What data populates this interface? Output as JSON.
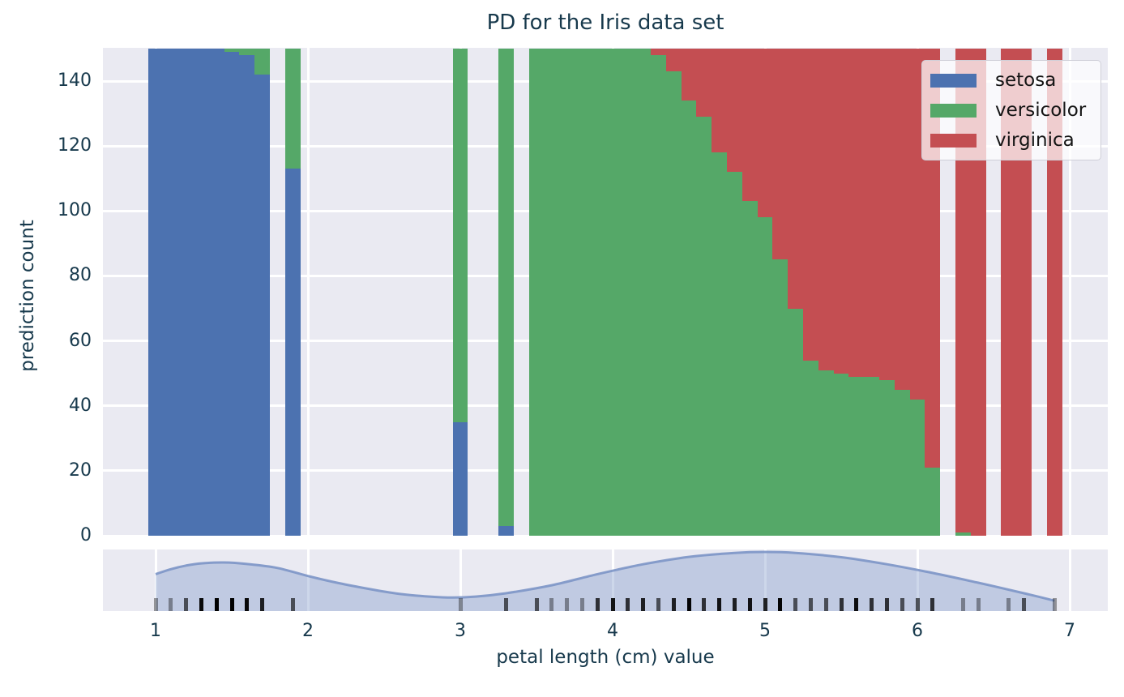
{
  "title": "PD for the Iris data set",
  "y_axis": {
    "label": "prediction count"
  },
  "x_axis": {
    "label": "petal length (cm) value"
  },
  "legend": {
    "items": [
      {
        "label": "setosa",
        "color": "#4c72b0"
      },
      {
        "label": "versicolor",
        "color": "#55a868"
      },
      {
        "label": "virginica",
        "color": "#c44e52"
      }
    ]
  },
  "colors": {
    "plot_background": "#eaeaf2",
    "gridline": "#ffffff",
    "axis_text": "#17394c",
    "legend_text": "#141414",
    "setosa": "#4c72b0",
    "versicolor": "#55a868",
    "virginica": "#c44e52",
    "kde_line": "rgba(124,149,199,0.9)",
    "kde_fill": "rgba(124,149,199,0.38)",
    "rug": "0,0,0"
  },
  "chart_data": {
    "type": "bar",
    "stacked": true,
    "title": "PD for the Iris data set",
    "xlabel": "petal length (cm) value",
    "ylabel": "prediction count",
    "xlim": [
      0.65,
      7.25
    ],
    "ylim": [
      0,
      150
    ],
    "x_ticks": [
      1,
      2,
      3,
      4,
      5,
      6,
      7
    ],
    "y_ticks": [
      0,
      20,
      40,
      60,
      80,
      100,
      120,
      140
    ],
    "grid": true,
    "legend_position": "upper right",
    "bar_width": 0.1,
    "x": [
      1.0,
      1.1,
      1.2,
      1.3,
      1.4,
      1.5,
      1.6,
      1.7,
      1.9,
      3.0,
      3.3,
      3.5,
      3.6,
      3.7,
      3.8,
      3.9,
      4.0,
      4.1,
      4.2,
      4.3,
      4.4,
      4.5,
      4.6,
      4.7,
      4.8,
      4.9,
      5.0,
      5.1,
      5.2,
      5.3,
      5.4,
      5.5,
      5.6,
      5.7,
      5.8,
      5.9,
      6.0,
      6.1,
      6.3,
      6.4,
      6.6,
      6.7,
      6.9
    ],
    "series": [
      {
        "name": "setosa",
        "color": "#4c72b0",
        "values": [
          150,
          150,
          150,
          150,
          150,
          149,
          148,
          142,
          113,
          35,
          3,
          0,
          0,
          0,
          0,
          0,
          0,
          0,
          0,
          0,
          0,
          0,
          0,
          0,
          0,
          0,
          0,
          0,
          0,
          0,
          0,
          0,
          0,
          0,
          0,
          0,
          0,
          0,
          0,
          0,
          0,
          0,
          0
        ]
      },
      {
        "name": "versicolor",
        "color": "#55a868",
        "values": [
          0,
          0,
          0,
          0,
          0,
          1,
          2,
          8,
          37,
          115,
          147,
          150,
          150,
          150,
          150,
          150,
          150,
          150,
          150,
          148,
          143,
          134,
          129,
          118,
          112,
          103,
          98,
          85,
          70,
          54,
          51,
          50,
          49,
          49,
          48,
          45,
          42,
          21,
          1,
          0,
          0,
          0,
          0
        ]
      },
      {
        "name": "virginica",
        "color": "#c44e52",
        "values": [
          0,
          0,
          0,
          0,
          0,
          0,
          0,
          0,
          0,
          0,
          0,
          0,
          0,
          0,
          0,
          0,
          0,
          0,
          0,
          2,
          7,
          16,
          21,
          32,
          38,
          47,
          52,
          65,
          80,
          96,
          99,
          100,
          101,
          101,
          102,
          105,
          108,
          129,
          149,
          150,
          150,
          150,
          150
        ]
      }
    ],
    "marginal": {
      "type": "kde+rug",
      "kde_points": [
        [
          1.0,
          0.6
        ],
        [
          1.1,
          0.68
        ],
        [
          1.2,
          0.74
        ],
        [
          1.3,
          0.775
        ],
        [
          1.45,
          0.79
        ],
        [
          1.6,
          0.765
        ],
        [
          1.8,
          0.7
        ],
        [
          2.0,
          0.57
        ],
        [
          2.2,
          0.455
        ],
        [
          2.4,
          0.36
        ],
        [
          2.6,
          0.28
        ],
        [
          2.8,
          0.235
        ],
        [
          2.95,
          0.22
        ],
        [
          3.1,
          0.235
        ],
        [
          3.3,
          0.29
        ],
        [
          3.6,
          0.42
        ],
        [
          3.9,
          0.6
        ],
        [
          4.2,
          0.76
        ],
        [
          4.5,
          0.88
        ],
        [
          4.8,
          0.945
        ],
        [
          5.0,
          0.96
        ],
        [
          5.2,
          0.945
        ],
        [
          5.5,
          0.875
        ],
        [
          5.8,
          0.76
        ],
        [
          6.1,
          0.62
        ],
        [
          6.4,
          0.46
        ],
        [
          6.7,
          0.29
        ],
        [
          6.9,
          0.17
        ]
      ],
      "rug_value_counts": [
        [
          1.0,
          1
        ],
        [
          1.1,
          1
        ],
        [
          1.2,
          2
        ],
        [
          1.3,
          7
        ],
        [
          1.4,
          13
        ],
        [
          1.5,
          13
        ],
        [
          1.6,
          7
        ],
        [
          1.7,
          4
        ],
        [
          1.9,
          2
        ],
        [
          3.0,
          1
        ],
        [
          3.3,
          2
        ],
        [
          3.5,
          2
        ],
        [
          3.6,
          1
        ],
        [
          3.7,
          1
        ],
        [
          3.8,
          1
        ],
        [
          3.9,
          3
        ],
        [
          4.0,
          5
        ],
        [
          4.1,
          3
        ],
        [
          4.2,
          4
        ],
        [
          4.3,
          2
        ],
        [
          4.4,
          4
        ],
        [
          4.5,
          8
        ],
        [
          4.6,
          3
        ],
        [
          4.7,
          5
        ],
        [
          4.8,
          4
        ],
        [
          4.9,
          5
        ],
        [
          5.0,
          4
        ],
        [
          5.1,
          8
        ],
        [
          5.2,
          2
        ],
        [
          5.3,
          2
        ],
        [
          5.4,
          2
        ],
        [
          5.5,
          3
        ],
        [
          5.6,
          6
        ],
        [
          5.7,
          3
        ],
        [
          5.8,
          3
        ],
        [
          5.9,
          2
        ],
        [
          6.0,
          2
        ],
        [
          6.1,
          3
        ],
        [
          6.3,
          1
        ],
        [
          6.4,
          1
        ],
        [
          6.6,
          1
        ],
        [
          6.7,
          2
        ],
        [
          6.9,
          1
        ]
      ]
    }
  }
}
